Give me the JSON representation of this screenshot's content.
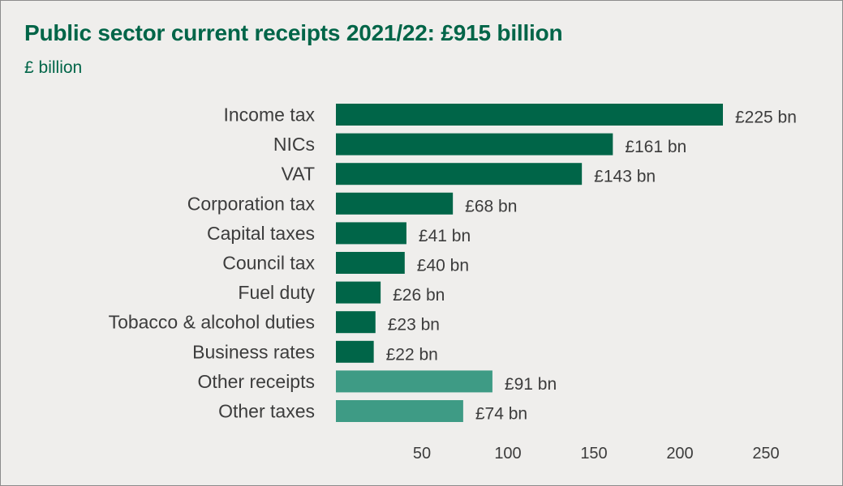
{
  "title": "Public sector current receipts 2021/22: £915 billion",
  "subtitle": "£ billion",
  "colors": {
    "primary": "#006548",
    "secondary": "#3e9b85"
  },
  "chart_data": {
    "type": "bar",
    "orientation": "horizontal",
    "title": "Public sector current receipts 2021/22: £915 billion",
    "unit": "£ billion",
    "categories": [
      "Income tax",
      "NICs",
      "VAT",
      "Corporation tax",
      "Capital taxes",
      "Council tax",
      "Fuel duty",
      "Tobacco & alcohol duties",
      "Business rates",
      "Other receipts",
      "Other taxes"
    ],
    "values": [
      225,
      161,
      143,
      68,
      41,
      40,
      26,
      23,
      22,
      91,
      74
    ],
    "value_labels": [
      "£225 bn",
      "£161 bn",
      "£143 bn",
      "£68 bn",
      "£41 bn",
      "£40 bn",
      "£26 bn",
      "£23 bn",
      "£22 bn",
      "£91 bn",
      "£74 bn"
    ],
    "bar_colors": [
      "#006548",
      "#006548",
      "#006548",
      "#006548",
      "#006548",
      "#006548",
      "#006548",
      "#006548",
      "#006548",
      "#3e9b85",
      "#3e9b85"
    ],
    "xticks": [
      50,
      100,
      150,
      200,
      250
    ],
    "xlim": [
      0,
      250
    ],
    "grid": false,
    "legend": "none"
  }
}
